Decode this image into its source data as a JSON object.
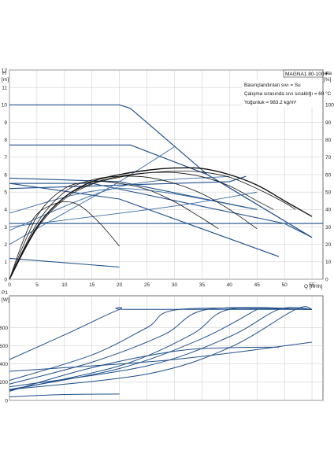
{
  "chart_data": [
    {
      "type": "line",
      "title": "MAGNA1 80-100 F",
      "notes": [
        "Basınçlandırılan sıvı = Su",
        "Çalışma sırasında sıvı sıcaklığı = 60 °C",
        "Yoğunluk = 983.2 kg/m³"
      ],
      "xlabel": "Q [m³/h]",
      "ylabel_left": "H",
      "ylabel_left_unit": "[m]",
      "ylabel_right": "eta",
      "ylabel_right_unit": "[%]",
      "xlim": [
        0,
        57
      ],
      "ylim_left": [
        0,
        12
      ],
      "ylim_right": [
        0,
        120
      ],
      "x_ticks": [
        "0",
        "5",
        "10",
        "15",
        "20",
        "25",
        "30",
        "35",
        "40",
        "45",
        "50",
        "55"
      ],
      "y_left_ticks": [
        "0",
        "1",
        "2",
        "3",
        "4",
        "5",
        "6",
        "7",
        "8",
        "9",
        "10",
        "11",
        "12"
      ],
      "y_right_ticks": [
        "0",
        "10",
        "20",
        "30",
        "40",
        "50",
        "60",
        "70",
        "80",
        "90",
        "100"
      ],
      "grid": true,
      "head_curves": [
        {
          "x": [
            0,
            20,
            22,
            36,
            55
          ],
          "y": [
            10,
            10,
            9.8,
            6,
            2.4
          ]
        },
        {
          "x": [
            0,
            20,
            22,
            36,
            55
          ],
          "y": [
            7.7,
            7.7,
            7.7,
            6,
            2.4
          ]
        },
        {
          "x": [
            0,
            15,
            50,
            55
          ],
          "y": [
            5.5,
            5.5,
            3.2,
            2.4
          ]
        },
        {
          "x": [
            0,
            57
          ],
          "y": [
            3.2,
            3.2
          ]
        },
        {
          "x": [
            0,
            20,
            49
          ],
          "y": [
            5.5,
            4.6,
            1.3
          ]
        },
        {
          "x": [
            0,
            20
          ],
          "y": [
            1.2,
            0.7
          ]
        },
        {
          "x": [
            0,
            20,
            45
          ],
          "y": [
            5.8,
            5.6,
            4
          ]
        },
        {
          "x": [
            0,
            40,
            43
          ],
          "y": [
            5.2,
            5.6,
            5.9
          ]
        }
      ],
      "system_curves": [
        {
          "x": [
            0,
            10,
            20,
            30
          ],
          "y": [
            2.0,
            3.8,
            5.6,
            7.6
          ]
        },
        {
          "x": [
            0,
            20,
            40
          ],
          "y": [
            2.8,
            5.3,
            5.9
          ]
        },
        {
          "x": [
            0,
            20,
            45
          ],
          "y": [
            3.8,
            5.2,
            4.0
          ]
        },
        {
          "x": [
            0,
            30,
            45
          ],
          "y": [
            3.0,
            4.2,
            5.0
          ]
        }
      ],
      "eta_curves": [
        {
          "x": [
            0,
            5,
            10,
            15,
            20,
            25,
            30,
            35,
            40,
            45,
            50,
            55
          ],
          "y": [
            0,
            30,
            47,
            56,
            60,
            62.5,
            63.8,
            63.5,
            60,
            54,
            45,
            36
          ]
        },
        {
          "x": [
            0,
            5,
            10,
            15,
            20,
            25,
            30,
            35,
            40,
            45,
            50,
            52
          ],
          "y": [
            0,
            29,
            46,
            54.5,
            58.5,
            61,
            62,
            61.5,
            58.5,
            52,
            44,
            40
          ]
        },
        {
          "x": [
            0,
            5,
            10,
            15,
            20,
            25,
            30,
            35,
            40,
            45,
            48
          ],
          "y": [
            0,
            30,
            47,
            55,
            59,
            61,
            61.2,
            58.8,
            53.5,
            45,
            40
          ]
        },
        {
          "x": [
            0,
            5,
            10,
            15,
            20,
            25,
            30,
            35,
            40,
            45
          ],
          "y": [
            0,
            32,
            50,
            57,
            59,
            58.5,
            55,
            49,
            40,
            29
          ]
        },
        {
          "x": [
            0,
            5,
            10,
            15,
            20,
            25,
            30,
            35,
            38
          ],
          "y": [
            0,
            36,
            52,
            56,
            55,
            51.5,
            44.5,
            35,
            29
          ]
        },
        {
          "x": [
            0,
            4,
            8,
            12,
            16,
            20
          ],
          "y": [
            0,
            33,
            43,
            43.5,
            33.5,
            19
          ]
        }
      ]
    },
    {
      "type": "line",
      "ylabel": "P1",
      "ylabel_unit": "[W]",
      "xlim": [
        0,
        57
      ],
      "ylim": [
        0,
        1150
      ],
      "y_ticks": [
        "0",
        "200",
        "400",
        "600",
        "800"
      ],
      "grid": true,
      "power_curves": [
        {
          "x": [
            0,
            10,
            20,
            22,
            55
          ],
          "y": [
            450,
            720,
            1000,
            1000,
            1000
          ]
        },
        {
          "x": [
            0,
            15,
            25,
            31,
            55
          ],
          "y": [
            220,
            500,
            800,
            1000,
            1000
          ]
        },
        {
          "x": [
            0,
            15,
            28,
            36,
            55
          ],
          "y": [
            180,
            420,
            720,
            1000,
            1000
          ]
        },
        {
          "x": [
            0,
            20,
            33,
            40,
            55
          ],
          "y": [
            110,
            380,
            720,
            1000,
            1000
          ]
        },
        {
          "x": [
            0,
            20,
            35,
            45
          ],
          "y": [
            120,
            350,
            680,
            1000
          ]
        },
        {
          "x": [
            0,
            25,
            40,
            49,
            55
          ],
          "y": [
            150,
            380,
            700,
            1000,
            1000
          ]
        },
        {
          "x": [
            0,
            25,
            40,
            52,
            55
          ],
          "y": [
            120,
            290,
            580,
            1000,
            1000
          ]
        },
        {
          "x": [
            0,
            15,
            30,
            40,
            49
          ],
          "y": [
            100,
            360,
            540,
            580,
            585
          ]
        },
        {
          "x": [
            0,
            10,
            20
          ],
          "y": [
            40,
            65,
            70
          ]
        },
        {
          "x": [
            0,
            10,
            20,
            30,
            40,
            50,
            55
          ],
          "y": [
            320,
            360,
            400,
            450,
            520,
            600,
            640
          ]
        }
      ]
    }
  ]
}
